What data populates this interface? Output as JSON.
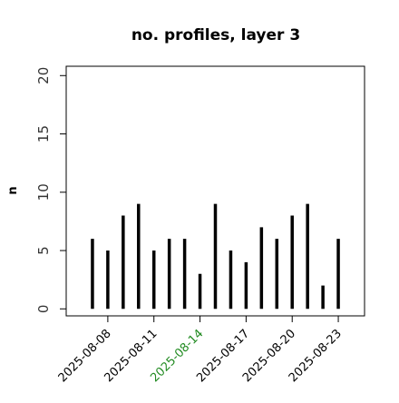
{
  "chart_data": {
    "type": "bar",
    "title": "no. profiles, layer 3",
    "ylabel": "n",
    "x": [
      "2025-08-07",
      "2025-08-08",
      "2025-08-09",
      "2025-08-10",
      "2025-08-11",
      "2025-08-12",
      "2025-08-13",
      "2025-08-14",
      "2025-08-15",
      "2025-08-16",
      "2025-08-17",
      "2025-08-18",
      "2025-08-19",
      "2025-08-20",
      "2025-08-21",
      "2025-08-22",
      "2025-08-23"
    ],
    "values": [
      6,
      5,
      8,
      9,
      5,
      6,
      6,
      3,
      9,
      5,
      4,
      7,
      6,
      8,
      9,
      2,
      6
    ],
    "color": "#000000",
    "xlim": [
      "2025-08-05T07:00",
      "2025-08-24T17:00"
    ],
    "xticks": [
      "2025-08-08",
      "2025-08-11",
      "2025-08-14",
      "2025-08-17",
      "2025-08-20",
      "2025-08-23"
    ],
    "xtick_label_colors": [
      "#000000",
      "#000000",
      "#228b22",
      "#000000",
      "#000000",
      "#000000"
    ],
    "ylim": [
      -0.6,
      20.8
    ],
    "yticks": [
      0,
      5,
      10,
      15,
      20
    ]
  }
}
